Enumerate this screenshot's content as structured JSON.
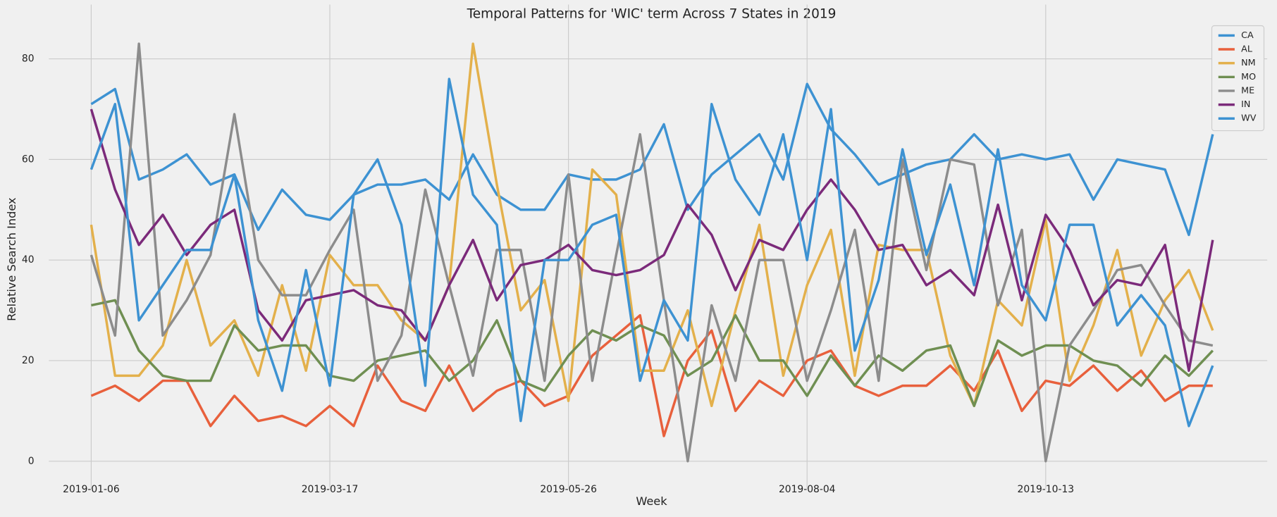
{
  "chart_data": {
    "type": "line",
    "title": "Temporal Patterns for 'WIC' term Across 7 States in 2019",
    "x_label": "Week",
    "y_label": "Relative Search Index",
    "x": [
      "2019-01-06",
      "2019-01-13",
      "2019-01-20",
      "2019-01-27",
      "2019-02-03",
      "2019-02-10",
      "2019-02-17",
      "2019-02-24",
      "2019-03-03",
      "2019-03-10",
      "2019-03-17",
      "2019-03-24",
      "2019-03-31",
      "2019-04-07",
      "2019-04-14",
      "2019-04-21",
      "2019-04-28",
      "2019-05-05",
      "2019-05-12",
      "2019-05-19",
      "2019-05-26",
      "2019-06-02",
      "2019-06-09",
      "2019-06-16",
      "2019-06-23",
      "2019-06-30",
      "2019-07-07",
      "2019-07-14",
      "2019-07-21",
      "2019-07-28",
      "2019-08-04",
      "2019-08-11",
      "2019-08-18",
      "2019-08-25",
      "2019-09-01",
      "2019-09-08",
      "2019-09-15",
      "2019-09-22",
      "2019-09-29",
      "2019-10-06",
      "2019-10-13",
      "2019-10-20",
      "2019-10-27",
      "2019-11-03",
      "2019-11-10",
      "2019-11-17",
      "2019-11-24",
      "2019-12-01"
    ],
    "xticks": [
      "2019-01-06",
      "2019-03-17",
      "2019-05-26",
      "2019-08-04",
      "2019-10-13"
    ],
    "ylim": [
      -5.5,
      90.8
    ],
    "yticks": [
      0,
      20,
      40,
      60,
      80
    ],
    "grid": true,
    "legend": "upper right",
    "series": [
      {
        "name": "CA",
        "color": "#3d92d2",
        "values": [
          71,
          74,
          56,
          58,
          61,
          55,
          57,
          46,
          54,
          49,
          48,
          53,
          55,
          55,
          56,
          52,
          61,
          53,
          50,
          50,
          57,
          56,
          56,
          58,
          67,
          50,
          57,
          61,
          65,
          56,
          75,
          66,
          61,
          55,
          57,
          59,
          60,
          65,
          60,
          61,
          60,
          61,
          52,
          60,
          59,
          58,
          45,
          65
        ]
      },
      {
        "name": "AL",
        "color": "#e8603c",
        "values": [
          13,
          15,
          12,
          16,
          16,
          7,
          13,
          8,
          9,
          7,
          11,
          7,
          19,
          12,
          10,
          19,
          10,
          14,
          16,
          11,
          13,
          21,
          25,
          29,
          5,
          20,
          26,
          10,
          16,
          13,
          20,
          22,
          15,
          13,
          15,
          15,
          19,
          14,
          22,
          10,
          16,
          15,
          19,
          14,
          18,
          12,
          15,
          15
        ]
      },
      {
        "name": "NM",
        "color": "#e3b04b",
        "values": [
          47,
          17,
          17,
          23,
          40,
          23,
          28,
          17,
          35,
          18,
          41,
          35,
          35,
          28,
          24,
          35,
          83,
          55,
          30,
          36,
          12,
          58,
          53,
          18,
          18,
          30,
          11,
          30,
          47,
          17,
          35,
          46,
          17,
          43,
          42,
          42,
          21,
          11,
          32,
          27,
          48,
          16,
          27,
          42,
          21,
          32,
          38,
          26
        ]
      },
      {
        "name": "MO",
        "color": "#6f8f52",
        "values": [
          31,
          32,
          22,
          17,
          16,
          16,
          27,
          22,
          23,
          23,
          17,
          16,
          20,
          21,
          22,
          16,
          20,
          28,
          16,
          14,
          21,
          26,
          24,
          27,
          25,
          17,
          20,
          29,
          20,
          20,
          13,
          21,
          15,
          21,
          18,
          22,
          23,
          11,
          24,
          21,
          23,
          23,
          20,
          19,
          15,
          21,
          17,
          22
        ]
      },
      {
        "name": "ME",
        "color": "#8c8c8c",
        "values": [
          41,
          25,
          83,
          25,
          32,
          41,
          69,
          40,
          33,
          33,
          42,
          50,
          16,
          25,
          54,
          35,
          17,
          42,
          42,
          16,
          57,
          16,
          41,
          65,
          32,
          0,
          31,
          16,
          40,
          40,
          16,
          30,
          46,
          16,
          60,
          38,
          60,
          59,
          31,
          46,
          0,
          23,
          30,
          38,
          39,
          31,
          24,
          23
        ]
      },
      {
        "name": "IN",
        "color": "#7b2a7a",
        "values": [
          70,
          54,
          43,
          49,
          41,
          47,
          50,
          30,
          24,
          32,
          33,
          34,
          31,
          30,
          24,
          35,
          44,
          32,
          39,
          40,
          43,
          38,
          37,
          38,
          41,
          51,
          45,
          34,
          44,
          42,
          50,
          56,
          50,
          42,
          43,
          35,
          38,
          33,
          51,
          32,
          49,
          42,
          31,
          36,
          35,
          43,
          18,
          44
        ]
      },
      {
        "name": "WV",
        "color": "#3d92d2",
        "values": [
          58,
          71,
          28,
          35,
          42,
          42,
          57,
          28,
          14,
          38,
          15,
          53,
          60,
          47,
          15,
          76,
          53,
          47,
          8,
          40,
          40,
          47,
          49,
          16,
          32,
          24,
          71,
          56,
          49,
          65,
          40,
          70,
          22,
          36,
          62,
          41,
          55,
          35,
          62,
          35,
          28,
          47,
          47,
          27,
          33,
          27,
          7,
          19
        ]
      }
    ]
  }
}
